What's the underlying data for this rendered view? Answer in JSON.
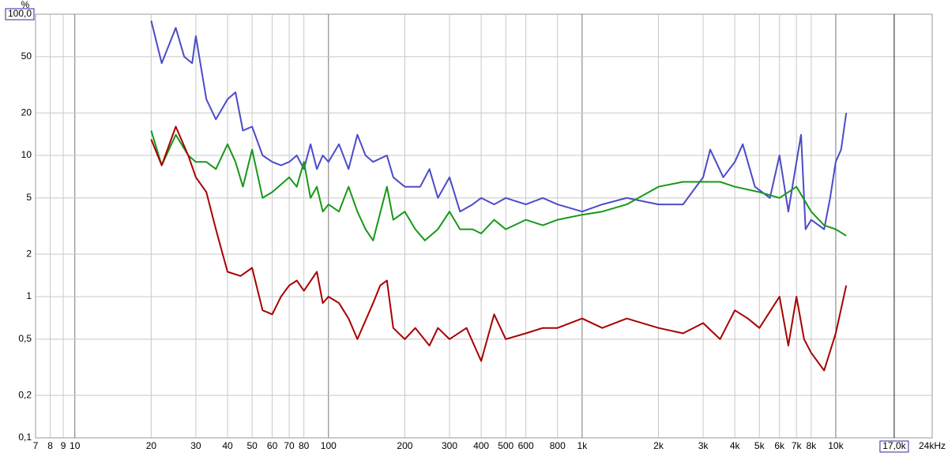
{
  "chart_data": {
    "type": "line",
    "y_label": "%",
    "log_x": true,
    "log_y": true,
    "grid": true,
    "xlim": [
      7,
      24000
    ],
    "ylim": [
      0.1,
      100
    ],
    "xticks": [
      7,
      8,
      9,
      10,
      20,
      30,
      40,
      50,
      60,
      70,
      80,
      100,
      200,
      300,
      400,
      500,
      600,
      800,
      {
        "value": 1000,
        "label": "1k"
      },
      {
        "value": 2000,
        "label": "2k"
      },
      {
        "value": 3000,
        "label": "3k"
      },
      {
        "value": 4000,
        "label": "4k"
      },
      {
        "value": 5000,
        "label": "5k"
      },
      {
        "value": 6000,
        "label": "6k"
      },
      {
        "value": 7000,
        "label": "7k"
      },
      {
        "value": 8000,
        "label": "8k"
      },
      {
        "value": 10000,
        "label": "10k"
      },
      {
        "value": 24000,
        "label": "24kHz"
      }
    ],
    "yticks": [
      {
        "value": 100,
        "label": "100,0"
      },
      50,
      20,
      10,
      5,
      2,
      1,
      {
        "value": 0.5,
        "label": "0,5"
      },
      {
        "value": 0.2,
        "label": "0,2"
      },
      {
        "value": 0.1,
        "label": "0,1"
      }
    ],
    "cursor": {
      "value": 17000,
      "label": "17,0k"
    },
    "series": [
      {
        "color": "#4b4bc8",
        "x": [
          20,
          22,
          25,
          27,
          29,
          30,
          33,
          36,
          40,
          43,
          46,
          50,
          55,
          60,
          65,
          70,
          75,
          80,
          85,
          90,
          95,
          100,
          110,
          120,
          130,
          140,
          150,
          170,
          180,
          200,
          230,
          250,
          270,
          300,
          330,
          370,
          400,
          450,
          500,
          600,
          700,
          800,
          1000,
          1200,
          1500,
          2000,
          2500,
          3000,
          3200,
          3600,
          4000,
          4300,
          4800,
          5500,
          6000,
          6500,
          7000,
          7300,
          7600,
          8000,
          9000,
          9500,
          10000,
          10500,
          11000
        ],
        "values": [
          90,
          45,
          80,
          50,
          45,
          70,
          25,
          18,
          25,
          28,
          15,
          16,
          10,
          9,
          8.5,
          9,
          10,
          8,
          12,
          8,
          10,
          9,
          12,
          8,
          14,
          10,
          9,
          10,
          7,
          6,
          6,
          8,
          5,
          7,
          4,
          4.5,
          5,
          4.5,
          5,
          4.5,
          5,
          4.5,
          4,
          4.5,
          5,
          4.5,
          4.5,
          7,
          11,
          7,
          9,
          12,
          6,
          5,
          10,
          4,
          9,
          14,
          3,
          3.5,
          3,
          5,
          9,
          11,
          20
        ]
      },
      {
        "color": "#189818",
        "x": [
          20,
          22,
          25,
          28,
          30,
          33,
          36,
          40,
          43,
          46,
          50,
          55,
          60,
          70,
          75,
          80,
          85,
          90,
          95,
          100,
          110,
          120,
          130,
          140,
          150,
          170,
          180,
          200,
          220,
          240,
          270,
          300,
          330,
          370,
          400,
          450,
          500,
          600,
          700,
          800,
          1000,
          1200,
          1500,
          2000,
          2500,
          3000,
          3500,
          4000,
          5000,
          6000,
          7000,
          8000,
          9000,
          10000,
          11000
        ],
        "values": [
          15,
          8.5,
          14,
          10,
          9,
          9,
          8,
          12,
          9,
          6,
          11,
          5,
          5.5,
          7,
          6,
          9,
          5,
          6,
          4,
          4.5,
          4,
          6,
          4,
          3,
          2.5,
          6,
          3.5,
          4,
          3,
          2.5,
          3,
          4,
          3,
          3,
          2.8,
          3.5,
          3,
          3.5,
          3.2,
          3.5,
          3.8,
          4,
          4.5,
          6,
          6.5,
          6.5,
          6.5,
          6,
          5.5,
          5,
          6,
          4,
          3.2,
          3,
          2.7
        ]
      },
      {
        "color": "#a80000",
        "x": [
          20,
          22,
          25,
          28,
          30,
          33,
          36,
          40,
          45,
          50,
          55,
          60,
          65,
          70,
          75,
          80,
          90,
          95,
          100,
          110,
          120,
          130,
          150,
          160,
          170,
          180,
          200,
          220,
          250,
          270,
          300,
          350,
          400,
          450,
          500,
          600,
          700,
          800,
          1000,
          1200,
          1500,
          2000,
          2500,
          3000,
          3500,
          4000,
          4500,
          5000,
          6000,
          6500,
          7000,
          7500,
          8000,
          9000,
          10000,
          11000
        ],
        "values": [
          13,
          8.5,
          16,
          10,
          7,
          5.5,
          3,
          1.5,
          1.4,
          1.6,
          0.8,
          0.75,
          1.0,
          1.2,
          1.3,
          1.1,
          1.5,
          0.9,
          1.0,
          0.9,
          0.7,
          0.5,
          0.9,
          1.2,
          1.3,
          0.6,
          0.5,
          0.6,
          0.45,
          0.6,
          0.5,
          0.6,
          0.35,
          0.75,
          0.5,
          0.55,
          0.6,
          0.6,
          0.7,
          0.6,
          0.7,
          0.6,
          0.55,
          0.65,
          0.5,
          0.8,
          0.7,
          0.6,
          1.0,
          0.45,
          1.0,
          0.5,
          0.4,
          0.3,
          0.55,
          1.2
        ]
      }
    ]
  }
}
